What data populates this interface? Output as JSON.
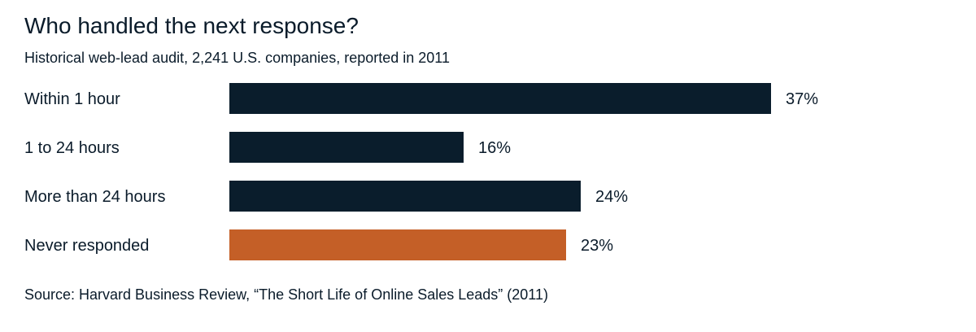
{
  "chart_data": {
    "type": "bar",
    "orientation": "horizontal",
    "title": "Who handled the next response?",
    "subtitle": "Historical web-lead audit, 2,241 U.S. companies, reported in 2011",
    "categories": [
      "Within 1 hour",
      "1 to 24 hours",
      "More than 24 hours",
      "Never responded"
    ],
    "values": [
      37,
      16,
      24,
      23
    ],
    "value_labels": [
      "37%",
      "16%",
      "24%",
      "23%"
    ],
    "unit": "%",
    "colors": [
      "#0a1d2c",
      "#0a1d2c",
      "#0a1d2c",
      "#c45f27"
    ],
    "grid": false,
    "legend": "none",
    "source": "Source: Harvard Business Review, “The Short Life of Online Sales Leads” (2011)"
  }
}
